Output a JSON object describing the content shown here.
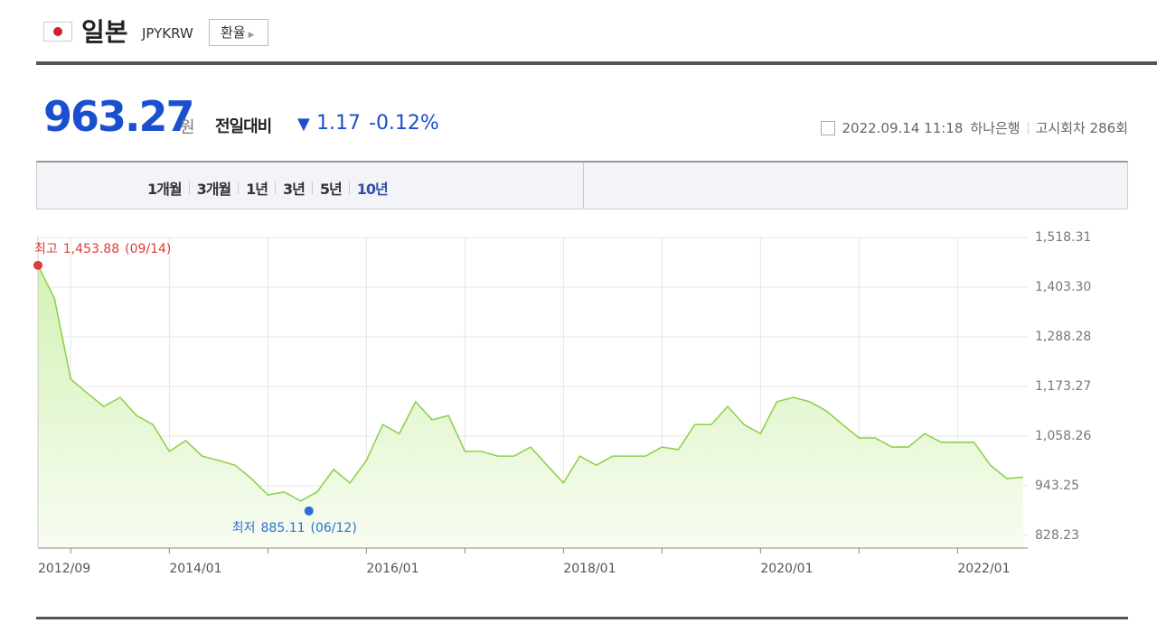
{
  "header": {
    "country": "일본",
    "code": "JPYKRW",
    "button": "환율"
  },
  "quote": {
    "price": "963.27",
    "unit": "원",
    "change_label": "전일대비",
    "change": "1.17",
    "change_pct": "-0.12%",
    "date": "2022.09.14 11:18",
    "bank": "하나은행",
    "round": "고시회차 286회"
  },
  "tabs": [
    "1개월",
    "3개월",
    "1년",
    "3년",
    "5년",
    "10년"
  ],
  "active_tab": 5,
  "chart_data": {
    "type": "area",
    "color": "#8fd14f",
    "x": [
      "2012/09",
      "2012/11",
      "2013/01",
      "2013/03",
      "2013/05",
      "2013/07",
      "2013/09",
      "2013/11",
      "2014/01",
      "2014/03",
      "2014/05",
      "2014/07",
      "2014/09",
      "2014/11",
      "2015/01",
      "2015/03",
      "2015/05",
      "2015/07",
      "2015/09",
      "2015/11",
      "2016/01",
      "2016/03",
      "2016/05",
      "2016/07",
      "2016/09",
      "2016/11",
      "2017/01",
      "2017/03",
      "2017/05",
      "2017/07",
      "2017/09",
      "2017/11",
      "2018/01",
      "2018/03",
      "2018/05",
      "2018/07",
      "2018/09",
      "2018/11",
      "2019/01",
      "2019/03",
      "2019/05",
      "2019/07",
      "2019/09",
      "2019/11",
      "2020/01",
      "2020/03",
      "2020/05",
      "2020/07",
      "2020/09",
      "2020/11",
      "2021/01",
      "2021/03",
      "2021/05",
      "2021/07",
      "2021/09",
      "2021/11",
      "2022/01",
      "2022/03",
      "2022/05",
      "2022/07",
      "2022/09"
    ],
    "values": [
      1453.88,
      1378,
      1190,
      1158,
      1127,
      1148,
      1106,
      1085,
      1023,
      1048,
      1012,
      1002,
      991,
      960,
      922,
      929,
      908,
      929,
      981,
      950,
      1002,
      1085,
      1064,
      1138,
      1096,
      1106,
      1023,
      1023,
      1012,
      1012,
      1033,
      991,
      950,
      1012,
      991,
      1012,
      1012,
      1012,
      1033,
      1027,
      1085,
      1085,
      1127,
      1085,
      1064,
      1138,
      1148,
      1138,
      1117,
      1085,
      1054,
      1054,
      1033,
      1033,
      1064,
      1044,
      1044,
      1044,
      991,
      960,
      963.27
    ],
    "xlim": [
      "2012/09",
      "2022/09"
    ],
    "xticks": [
      "2012/09",
      "2014/01",
      "2016/01",
      "2018/01",
      "2020/01",
      "2022/01"
    ],
    "ylim": [
      799,
      1518.31
    ],
    "yticks": [
      828.23,
      943.25,
      {
        "value": 1058.26,
        "label": "1,058.26"
      },
      {
        "value": 1173.27,
        "label": "1,173.27"
      },
      {
        "value": 1288.28,
        "label": "1,288.28"
      },
      {
        "value": 1403.3,
        "label": "1,403.30"
      },
      {
        "value": 1518.31,
        "label": "1,518.31"
      }
    ],
    "grid": true,
    "annotations": [
      {
        "label": "최고",
        "value": 1453.88,
        "value_label": "1,453.88",
        "date": "(09/14)",
        "x": "2012/09",
        "color": "#e03a3a"
      },
      {
        "label": "최저",
        "value": 885.11,
        "value_label": "885.11",
        "date": "(06/12)",
        "x": "2015/06",
        "color": "#2e6fd6"
      }
    ]
  }
}
